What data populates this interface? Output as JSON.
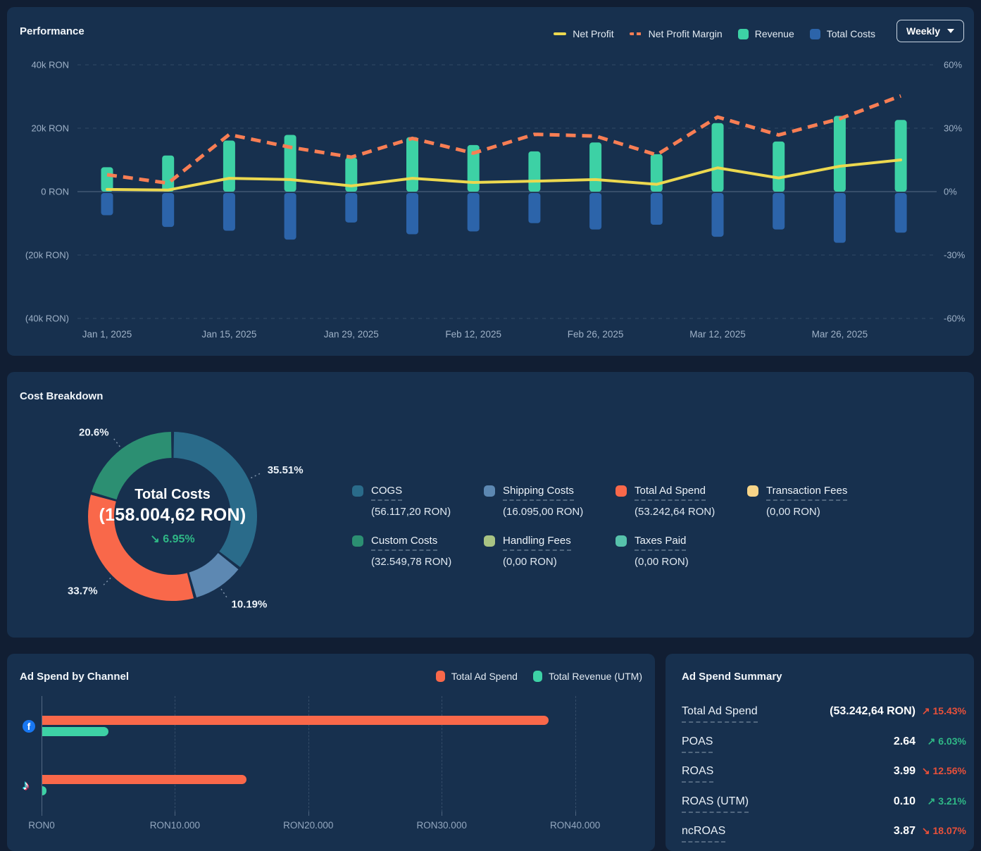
{
  "performance": {
    "title": "Performance",
    "period_selector": {
      "label": "Weekly"
    },
    "legend": [
      {
        "label": "Net Profit",
        "color": "#ecd84f",
        "swatch": "line"
      },
      {
        "label": "Net Profit Margin",
        "color": "#f87e54",
        "swatch": "dashed-line"
      },
      {
        "label": "Revenue",
        "color": "#3dd1a5",
        "swatch": "square"
      },
      {
        "label": "Total Costs",
        "color": "#2c64aa",
        "swatch": "square"
      }
    ],
    "chart_data": {
      "type": "bar",
      "subtype": "combo bar+line, dual axis",
      "x": [
        "Jan 1, 2025",
        "Jan 8, 2025",
        "Jan 15, 2025",
        "Jan 22, 2025",
        "Jan 29, 2025",
        "Feb 5, 2025",
        "Feb 12, 2025",
        "Feb 19, 2025",
        "Feb 26, 2025",
        "Mar 5, 2025",
        "Mar 12, 2025",
        "Mar 19, 2025",
        "Mar 26, 2025",
        "Apr 2, 2025"
      ],
      "x_tick_labels": [
        "Jan 1, 2025",
        "Jan 15, 2025",
        "Jan 29, 2025",
        "Feb 12, 2025",
        "Feb 26, 2025",
        "Mar 12, 2025",
        "Mar 26, 2025"
      ],
      "left_axis": {
        "ticks": [
          "40k RON",
          "20k RON",
          "0 RON",
          "(20k RON)",
          "(40k RON)"
        ],
        "max": 40000,
        "min": -40000
      },
      "right_axis": {
        "ticks": [
          "60%",
          "30%",
          "0%",
          "-30%",
          "-60%"
        ],
        "max": 60,
        "min": -60
      },
      "grid": true,
      "legend_position": "top-right",
      "series": [
        {
          "name": "Revenue",
          "type": "bar",
          "axis": "left",
          "color": "#3dd1a5",
          "values": [
            7700,
            11400,
            16100,
            17900,
            10700,
            17200,
            14700,
            12700,
            15500,
            11800,
            21600,
            15800,
            23900,
            22600
          ]
        },
        {
          "name": "Total Costs",
          "type": "bar",
          "axis": "left",
          "color": "#2c64aa",
          "values": [
            -7000,
            -10700,
            -11900,
            -14700,
            -9300,
            -13000,
            -12100,
            -9500,
            -11500,
            -10000,
            -13800,
            -11500,
            -15700,
            -12500
          ]
        },
        {
          "name": "Net Profit",
          "type": "line",
          "axis": "left",
          "color": "#ecd84f",
          "values": [
            700,
            500,
            4200,
            3800,
            1800,
            4200,
            2900,
            3300,
            3800,
            2300,
            7500,
            4300,
            8000,
            10000
          ]
        },
        {
          "name": "Net Profit Margin",
          "type": "dashed-line",
          "axis": "right",
          "color": "#f87e54",
          "values": [
            8,
            4,
            27,
            21,
            16.3,
            25.2,
            18.2,
            27.1,
            26.3,
            17.4,
            35.3,
            26.8,
            34.5,
            45.3
          ]
        }
      ]
    }
  },
  "cost_breakdown": {
    "title": "Cost Breakdown",
    "chart_data": {
      "type": "pie",
      "subtype": "donut",
      "center": {
        "label": "Total Costs",
        "value": "(158.004,62 RON)",
        "delta": "6.95%",
        "delta_direction": "down",
        "delta_color": "#2fb886"
      },
      "slices": [
        {
          "label": "COGS",
          "pct": 35.51,
          "pct_label": "35.51%",
          "color": "#2a6b8a"
        },
        {
          "label": "Shipping Costs",
          "pct": 10.19,
          "pct_label": "10.19%",
          "color": "#5d88b2"
        },
        {
          "label": "Total Ad Spend",
          "pct": 33.7,
          "pct_label": "33.7%",
          "color": "#f9684a"
        },
        {
          "label": "Custom Costs",
          "pct": 20.6,
          "pct_label": "20.6%",
          "color": "#2c8f72"
        }
      ]
    },
    "legend": [
      {
        "label": "COGS",
        "value": "(56.117,20 RON)",
        "color": "#2a6b8a"
      },
      {
        "label": "Shipping Costs",
        "value": "(16.095,00 RON)",
        "color": "#5d88b2"
      },
      {
        "label": "Total Ad Spend",
        "value": "(53.242,64 RON)",
        "color": "#f9684a"
      },
      {
        "label": "Transaction Fees",
        "value": "(0,00 RON)",
        "color": "#f7d488"
      },
      {
        "label": "Custom Costs",
        "value": "(32.549,78 RON)",
        "color": "#2c8f72"
      },
      {
        "label": "Handling Fees",
        "value": "(0,00 RON)",
        "color": "#a8c383"
      },
      {
        "label": "Taxes Paid",
        "value": "(0,00 RON)",
        "color": "#57c2ab"
      }
    ]
  },
  "ad_spend_by_channel": {
    "title": "Ad Spend by Channel",
    "legend": [
      {
        "label": "Total Ad Spend",
        "color": "#f9684a"
      },
      {
        "label": "Total Revenue (UTM)",
        "color": "#3dd1a5"
      }
    ],
    "chart_data": {
      "type": "bar",
      "subtype": "horizontal grouped",
      "categories": [
        "Facebook",
        "TikTok"
      ],
      "series": [
        {
          "name": "Total Ad Spend",
          "color": "#f9684a",
          "values": [
            37950,
            15290
          ]
        },
        {
          "name": "Total Revenue (UTM)",
          "color": "#3dd1a5",
          "values": [
            4950,
            340
          ]
        }
      ],
      "x_ticks": [
        {
          "label": "RON0",
          "value": 0
        },
        {
          "label": "RON10.000",
          "value": 10000
        },
        {
          "label": "RON20.000",
          "value": 20000
        },
        {
          "label": "RON30.000",
          "value": 30000
        },
        {
          "label": "RON40.000",
          "value": 40000
        }
      ],
      "x_max": 45000
    }
  },
  "ad_spend_summary": {
    "title": "Ad Spend Summary",
    "rows": [
      {
        "label": "Total Ad Spend",
        "value": "(53.242,64 RON)",
        "delta": "15.43%",
        "delta_direction": "up",
        "delta_color": "#e8503a"
      },
      {
        "label": "POAS",
        "value": "2.64",
        "delta": "6.03%",
        "delta_direction": "up",
        "delta_color": "#2fb886"
      },
      {
        "label": "ROAS",
        "value": "3.99",
        "delta": "12.56%",
        "delta_direction": "down",
        "delta_color": "#e8503a"
      },
      {
        "label": "ROAS (UTM)",
        "value": "0.10",
        "delta": "3.21%",
        "delta_direction": "up",
        "delta_color": "#2fb886"
      },
      {
        "label": "ncROAS",
        "value": "3.87",
        "delta": "18.07%",
        "delta_direction": "down",
        "delta_color": "#e8503a"
      }
    ]
  }
}
